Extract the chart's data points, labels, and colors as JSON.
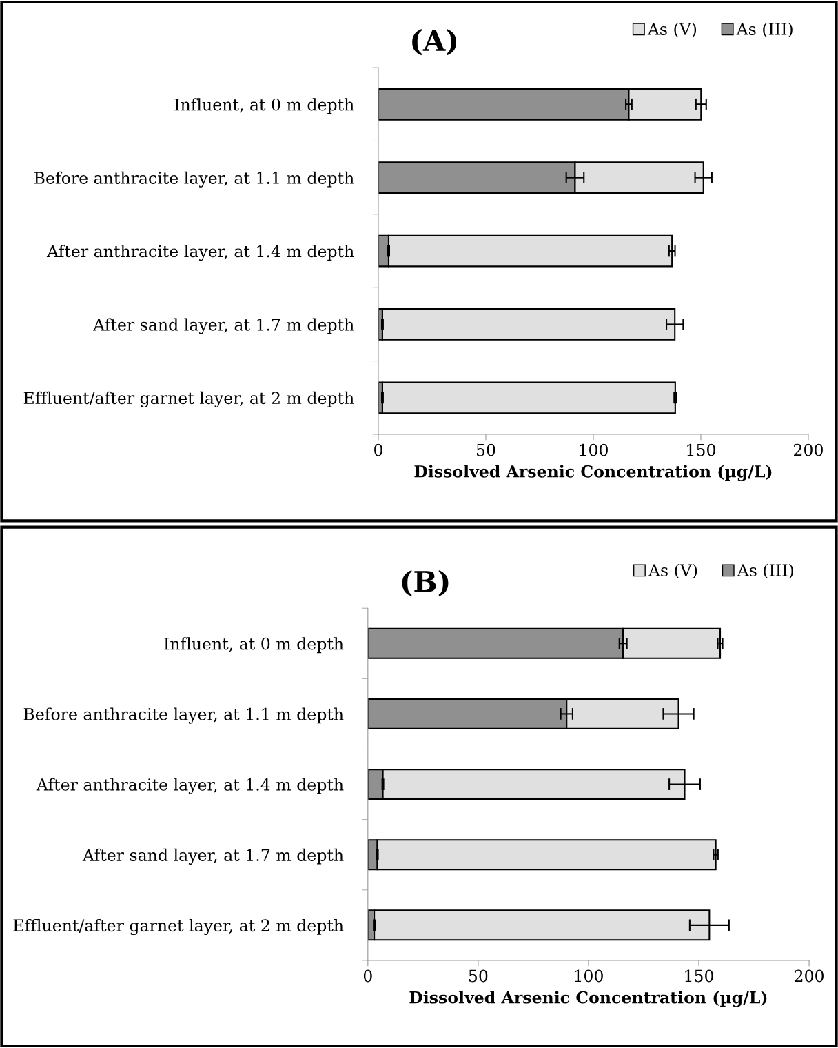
{
  "chart_data": [
    {
      "type": "bar",
      "orientation": "horizontal",
      "stacked": true,
      "title": "(A)",
      "xlabel": "Dissolved Arsenic Concentration (µg/L)",
      "categories": [
        "Influent, at 0 m depth",
        "Before anthracite layer, at 1.1 m depth",
        "After anthracite layer, at 1.4 m depth",
        "After sand layer, at 1.7 m depth",
        "Effluent/after garnet layer, at 2 m depth"
      ],
      "series": [
        {
          "name": "As (III)",
          "color": "#909090",
          "values": [
            116.5,
            91.5,
            4.8,
            1.9,
            1.9
          ],
          "errors": [
            1.4,
            4.1,
            0.3,
            0.3,
            0.3
          ]
        },
        {
          "name": "As (V)",
          "color": "#e0e0e0",
          "values": [
            33.6,
            59.7,
            131.8,
            136.0,
            136.2
          ],
          "errors": [
            2.4,
            3.9,
            1.4,
            3.9,
            0.5
          ]
        }
      ],
      "xlim": [
        0,
        200
      ],
      "xticks": [
        0,
        50,
        100,
        150,
        200
      ],
      "grid": false,
      "legend": "top right"
    },
    {
      "type": "bar",
      "orientation": "horizontal",
      "stacked": true,
      "title": "(B)",
      "xlabel": "Dissolved Arsenic Concentration (µg/L)",
      "categories": [
        "Influent, at 0 m depth",
        "Before anthracite layer, at 1.1 m depth",
        "After anthracite layer, at 1.4 m depth",
        "After sand layer, at 1.7 m depth",
        "Effluent/after garnet layer, at 2 m depth"
      ],
      "series": [
        {
          "name": "As (III)",
          "color": "#909090",
          "values": [
            115.7,
            90.1,
            6.8,
            4.3,
            2.9
          ],
          "errors": [
            1.7,
            2.7,
            0.3,
            0.3,
            0.3
          ]
        },
        {
          "name": "As (V)",
          "color": "#e0e0e0",
          "values": [
            44.0,
            50.7,
            136.8,
            153.4,
            151.9
          ],
          "errors": [
            1.1,
            6.9,
            7.0,
            1.0,
            8.9
          ]
        }
      ],
      "xlim": [
        0,
        200
      ],
      "xticks": [
        0,
        50,
        100,
        150,
        200
      ],
      "grid": false,
      "legend": "top right"
    }
  ]
}
